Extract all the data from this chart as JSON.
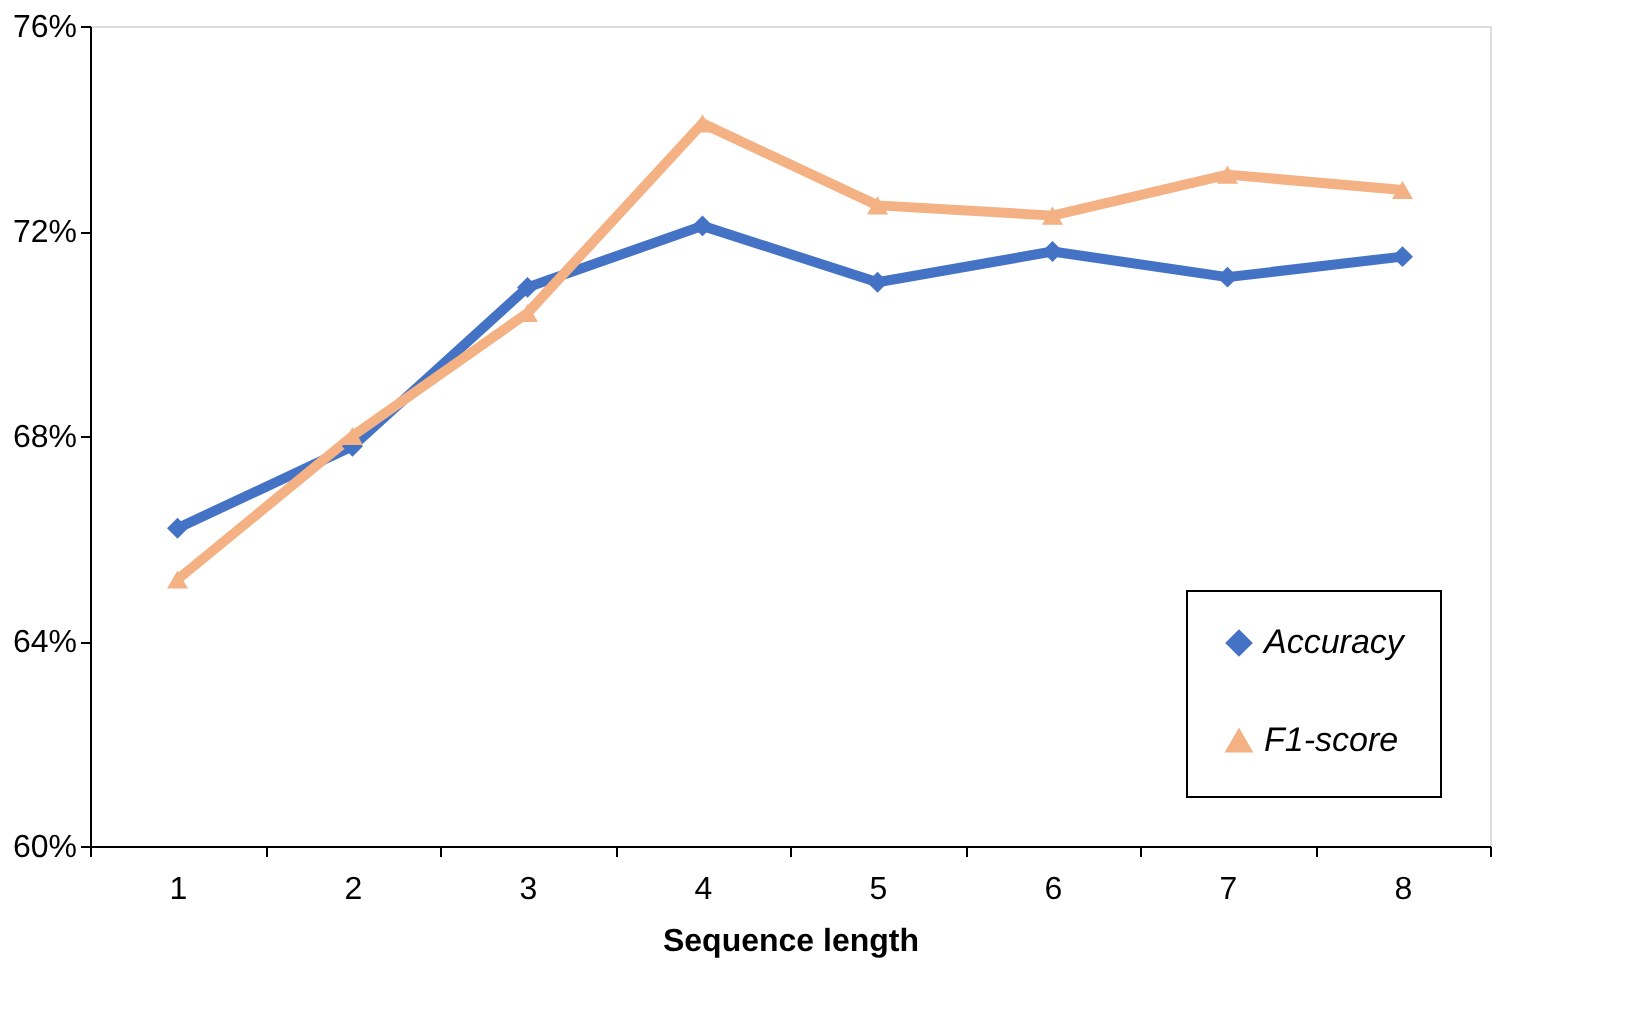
{
  "chart_data": {
    "type": "line",
    "xlabel": "Sequence length",
    "categories": [
      "1",
      "2",
      "3",
      "4",
      "5",
      "6",
      "7",
      "8"
    ],
    "series": [
      {
        "name": "Accuracy",
        "color": "#4472c4",
        "marker": "diamond",
        "values": [
          66.2,
          67.8,
          70.9,
          72.1,
          71.0,
          71.6,
          71.1,
          71.5
        ]
      },
      {
        "name": "F1-score",
        "color": "#f4b183",
        "marker": "triangle",
        "values": [
          65.2,
          68.0,
          70.4,
          74.1,
          72.5,
          72.3,
          73.1,
          72.8
        ]
      }
    ],
    "ylim": [
      60,
      76
    ],
    "yticks": [
      {
        "value": 60,
        "label": "60%"
      },
      {
        "value": 64,
        "label": "64%"
      },
      {
        "value": 68,
        "label": "68%"
      },
      {
        "value": 72,
        "label": "72%"
      },
      {
        "value": 76,
        "label": "76%"
      }
    ],
    "grid": false,
    "legend": "bottom right",
    "line_style": "solid"
  }
}
